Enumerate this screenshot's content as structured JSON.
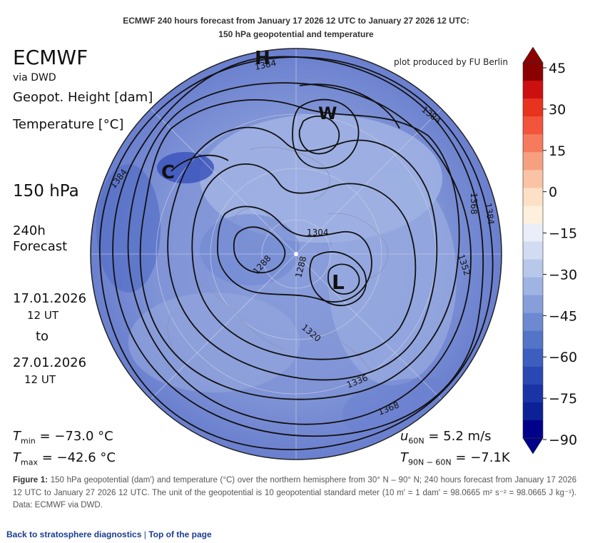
{
  "header": {
    "title_line1": "ECMWF 240 hours forecast from January 17 2026 12 UTC to January 27 2026 12 UTC:",
    "title_line2": "150 hPa geopotential and temperature"
  },
  "left_panel": {
    "model": "ECMWF",
    "via": "via DWD",
    "var1": "Geopot. Height [dam]",
    "var2": "Temperature [°C]",
    "level": "150 hPa",
    "lead_line1": "240h",
    "lead_line2": "Forecast",
    "start_date": "17.01.2026",
    "start_time": "12 UT",
    "to": "to",
    "end_date": "27.01.2026",
    "end_time": "12 UT"
  },
  "credit": "plot produced by FU Berlin",
  "stats": {
    "tmin_label": "T",
    "tmin_sub": "min",
    "tmin_value": "=  −73.0 °C",
    "tmax_label": "T",
    "tmax_sub": "max",
    "tmax_value": "=  −42.6 °C",
    "u_label": "u",
    "u_sub": "60N",
    "u_value": "= 5.2 m/s",
    "t_label": "T",
    "t_sub": "90N − 60N",
    "t_value": "= −7.1K"
  },
  "map": {
    "pressure_centers": [
      {
        "label": "H"
      },
      {
        "label": "W"
      },
      {
        "label": "C"
      },
      {
        "label": "L"
      }
    ],
    "contour_labels": [
      "1384",
      "1384",
      "1384",
      "1384",
      "1368",
      "1352",
      "1304",
      "1288",
      "1288",
      "1320",
      "1336",
      "1368"
    ]
  },
  "colorbar": {
    "ticks": [
      "45",
      "30",
      "15",
      "0",
      "−15",
      "−30",
      "−45",
      "−60",
      "−75",
      "−90"
    ],
    "colors": [
      "#8b0000",
      "#cc1010",
      "#e8331e",
      "#f2543c",
      "#f57a5e",
      "#f7a080",
      "#fac3a6",
      "#fde0c6",
      "#fdf0dc",
      "#e9eef8",
      "#d1dcf2",
      "#b8c8eb",
      "#9fb4e3",
      "#869fdb",
      "#6c89d2",
      "#5474c8",
      "#3d5ebf",
      "#2a48b3",
      "#1a33a5",
      "#0d2197",
      "#00008b"
    ]
  },
  "caption": {
    "figure": "Figure 1:",
    "text": "150 hPa geopotential (dam') and temperature (°C) over the northern hemisphere from 30° N – 90° N; 240 hours forecast from January 17 2026 12 UTC to January 27 2026 12 UTC. The unit of the geopotential is 10 geopotential standard meter (10 m' = 1 dam' = 98.0665 m² s⁻² = 98.0665 J kg⁻¹). Data: ECMWF via DWD."
  },
  "links": {
    "back": "Back to stratosphere diagnostics",
    "separator": "|",
    "top": "Top of the page"
  }
}
